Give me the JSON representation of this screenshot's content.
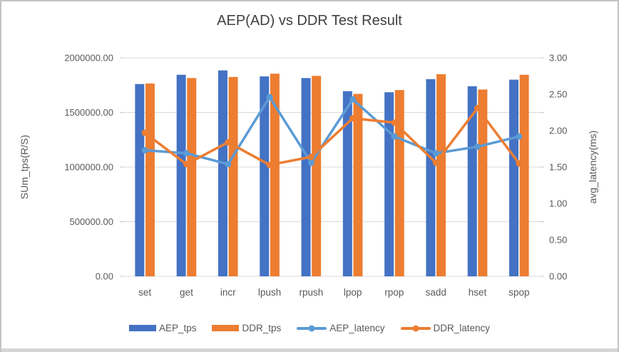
{
  "chart_data": {
    "type": "combo-bar-line",
    "title": "AEP(AD) vs DDR Test Result",
    "categories": [
      "set",
      "get",
      "incr",
      "lpush",
      "rpush",
      "lpop",
      "rpop",
      "sadd",
      "hset",
      "spop"
    ],
    "series": [
      {
        "name": "AEP_tps",
        "type": "bar",
        "axis": "left",
        "color": "#4472C4",
        "values": [
          1760000,
          1845000,
          1885000,
          1830000,
          1815000,
          1695000,
          1685000,
          1805000,
          1740000,
          1800000
        ]
      },
      {
        "name": "DDR_tps",
        "type": "bar",
        "axis": "left",
        "color": "#ED7D31",
        "values": [
          1765000,
          1815000,
          1825000,
          1855000,
          1835000,
          1670000,
          1705000,
          1850000,
          1710000,
          1845000
        ]
      },
      {
        "name": "AEP_latency",
        "type": "line",
        "axis": "right",
        "color": "#5B9BD5",
        "values": [
          1.73,
          1.69,
          1.54,
          2.46,
          1.56,
          2.43,
          1.92,
          1.69,
          1.78,
          1.92
        ]
      },
      {
        "name": "DDR_latency",
        "type": "line",
        "axis": "right",
        "color": "#ED7D31",
        "values": [
          1.97,
          1.54,
          1.84,
          1.53,
          1.64,
          2.17,
          2.11,
          1.56,
          2.31,
          1.55
        ]
      }
    ],
    "axes": {
      "left": {
        "label": "SUm_tps(R/S)",
        "min": 0,
        "max": 2000000,
        "ticks": [
          "0.00",
          "500000.00",
          "1000000.00",
          "1500000.00",
          "2000000.00"
        ]
      },
      "right": {
        "label": "avg_latency(ms)",
        "min": 0,
        "max": 3,
        "ticks": [
          "0.00",
          "0.50",
          "1.00",
          "1.50",
          "2.00",
          "2.50",
          "3.00"
        ]
      }
    },
    "grid": true,
    "legend_position": "bottom",
    "colors": {
      "gridline": "#D9D9D9",
      "tick_mark": "#C9C9C9",
      "axis_text": "#595959",
      "frame_border": "#C3C3C3",
      "bottom_strip": "#D5D5D5"
    }
  }
}
